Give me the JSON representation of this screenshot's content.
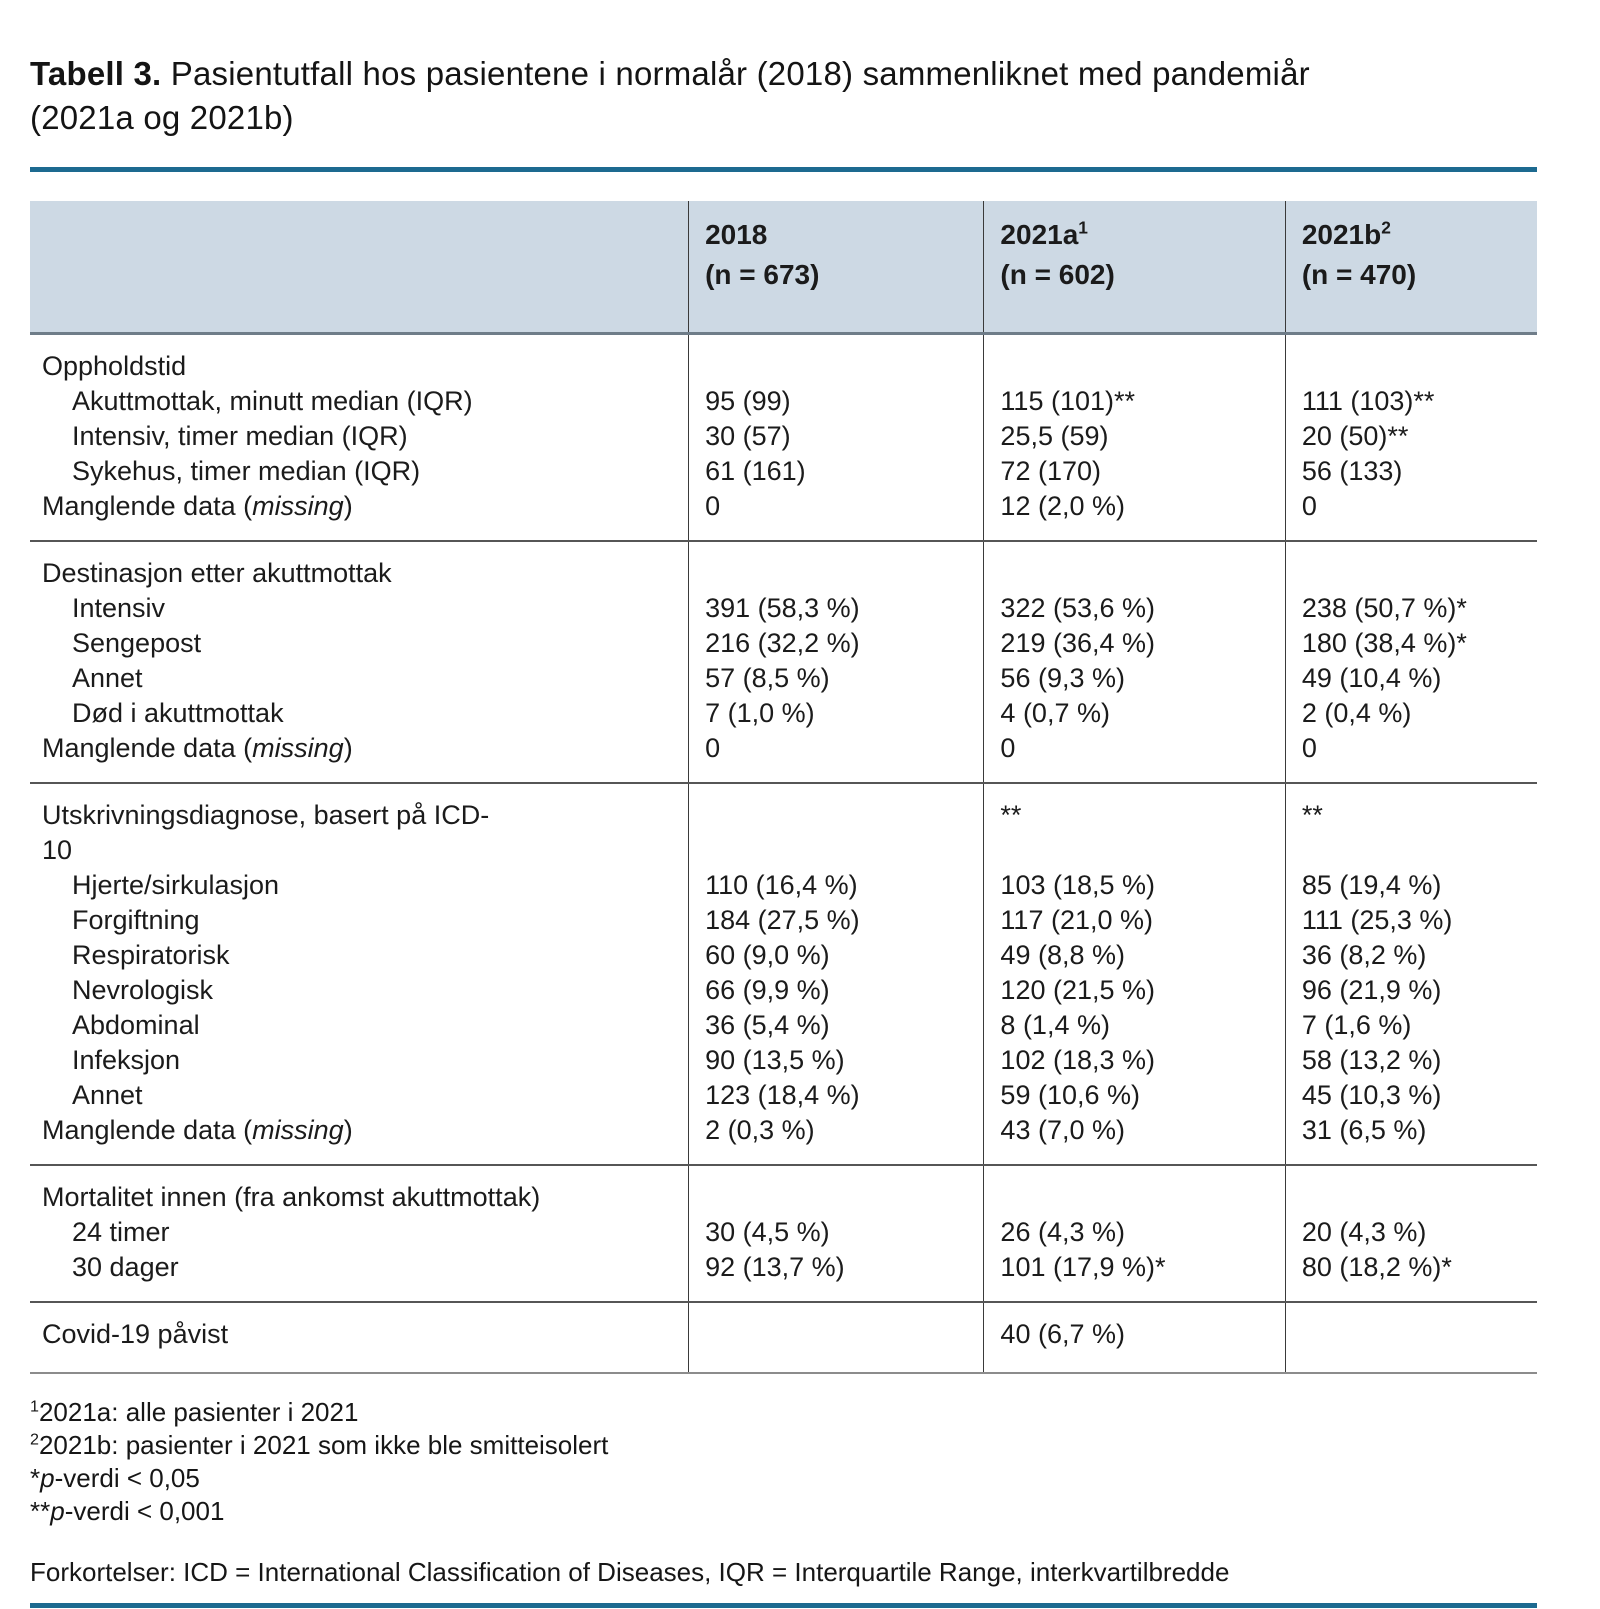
{
  "title": {
    "label_bold": "Tabell 3.",
    "label_rest": " Pasientutfall hos pasientene i normalår (2018) sammenliknet med pandemiår (2021a og 2021b)"
  },
  "colors": {
    "rule_blue": "#1d6a90",
    "header_bg": "#cdd9e4"
  },
  "table": {
    "columns": [
      {
        "year": "2018",
        "sup": "",
        "n": "(n = 673)"
      },
      {
        "year": "2021a",
        "sup": "1",
        "n": "(n = 602)"
      },
      {
        "year": "2021b",
        "sup": "2",
        "n": "(n = 470)"
      }
    ],
    "sections": [
      {
        "rows": [
          {
            "label": "Oppholdstid",
            "indent": false,
            "cells": [
              "",
              "",
              ""
            ]
          },
          {
            "label": "Akuttmottak, minutt median (IQR)",
            "indent": true,
            "cells": [
              "95 (99)",
              "115 (101)**",
              "111 (103)**"
            ]
          },
          {
            "label": "Intensiv, timer median (IQR)",
            "indent": true,
            "cells": [
              "30 (57)",
              "25,5 (59)",
              "20 (50)**"
            ]
          },
          {
            "label": "Sykehus, timer median (IQR)",
            "indent": true,
            "cells": [
              "61 (161)",
              "72 (170)",
              "56 (133)"
            ]
          },
          {
            "label_pre": "Manglende data (",
            "label_em": "missing",
            "label_post": ")",
            "indent": false,
            "cells": [
              "0",
              "12 (2,0 %)",
              "0"
            ]
          }
        ]
      },
      {
        "rows": [
          {
            "label": "Destinasjon etter akuttmottak",
            "indent": false,
            "cells": [
              "",
              "",
              ""
            ]
          },
          {
            "label": "Intensiv",
            "indent": true,
            "cells": [
              "391 (58,3 %)",
              "322 (53,6 %)",
              "238 (50,7 %)*"
            ]
          },
          {
            "label": "Sengepost",
            "indent": true,
            "cells": [
              "216 (32,2 %)",
              "219 (36,4 %)",
              "180 (38,4 %)*"
            ]
          },
          {
            "label": "Annet",
            "indent": true,
            "cells": [
              "57 (8,5 %)",
              "56 (9,3 %)",
              "49 (10,4 %)"
            ]
          },
          {
            "label": "Død i akuttmottak",
            "indent": true,
            "cells": [
              "7 (1,0 %)",
              "4 (0,7 %)",
              "2 (0,4 %)"
            ]
          },
          {
            "label_pre": "Manglende data (",
            "label_em": "missing",
            "label_post": ")",
            "indent": false,
            "cells": [
              "0",
              "0",
              "0"
            ]
          }
        ]
      },
      {
        "rows": [
          {
            "label": "Utskrivningsdiagnose, basert på ICD-10",
            "indent": false,
            "cells": [
              "",
              "**",
              "**"
            ]
          },
          {
            "label": "Hjerte/sirkulasjon",
            "indent": true,
            "cells": [
              "110 (16,4 %)",
              "103 (18,5 %)",
              "85 (19,4 %)"
            ]
          },
          {
            "label": "Forgiftning",
            "indent": true,
            "cells": [
              "184 (27,5 %)",
              "117 (21,0 %)",
              "111 (25,3 %)"
            ]
          },
          {
            "label": "Respiratorisk",
            "indent": true,
            "cells": [
              "60 (9,0 %)",
              "49 (8,8 %)",
              "36 (8,2 %)"
            ]
          },
          {
            "label": "Nevrologisk",
            "indent": true,
            "cells": [
              "66 (9,9 %)",
              "120 (21,5 %)",
              "96 (21,9 %)"
            ]
          },
          {
            "label": "Abdominal",
            "indent": true,
            "cells": [
              "36 (5,4 %)",
              "8 (1,4 %)",
              "7 (1,6 %)"
            ]
          },
          {
            "label": "Infeksjon",
            "indent": true,
            "cells": [
              "90 (13,5 %)",
              "102 (18,3 %)",
              "58 (13,2 %)"
            ]
          },
          {
            "label": "Annet",
            "indent": true,
            "cells": [
              "123 (18,4 %)",
              "59 (10,6 %)",
              "45 (10,3 %)"
            ]
          },
          {
            "label_pre": "Manglende data (",
            "label_em": "missing",
            "label_post": ")",
            "indent": false,
            "cells": [
              "2 (0,3 %)",
              "43 (7,0 %)",
              "31 (6,5 %)"
            ]
          }
        ]
      },
      {
        "rows": [
          {
            "label": "Mortalitet innen (fra ankomst akuttmottak)",
            "indent": false,
            "cells": [
              "",
              "",
              ""
            ]
          },
          {
            "label": "24 timer",
            "indent": true,
            "cells": [
              "30 (4,5 %)",
              "26 (4,3 %)",
              "20 (4,3 %)"
            ]
          },
          {
            "label": "30 dager",
            "indent": true,
            "cells": [
              "92 (13,7 %)",
              "101 (17,9 %)*",
              "80 (18,2 %)*"
            ]
          }
        ]
      },
      {
        "rows": [
          {
            "label": "Covid-19 påvist",
            "indent": false,
            "cells": [
              "",
              "40 (6,7 %)",
              ""
            ]
          }
        ]
      }
    ]
  },
  "footnotes": [
    {
      "sup": "1",
      "text": "2021a: alle pasienter i 2021"
    },
    {
      "sup": "2",
      "text": "2021b: pasienter i 2021 som ikke ble smitteisolert"
    },
    {
      "pre": "*",
      "em": "p",
      "post": "-verdi < 0,05"
    },
    {
      "pre": "**",
      "em": "p",
      "post": "-verdi < 0,001"
    }
  ],
  "abbreviations": "Forkortelser: ICD = International Classification of Diseases, IQR = Interquartile Range, interkvartilbredde"
}
